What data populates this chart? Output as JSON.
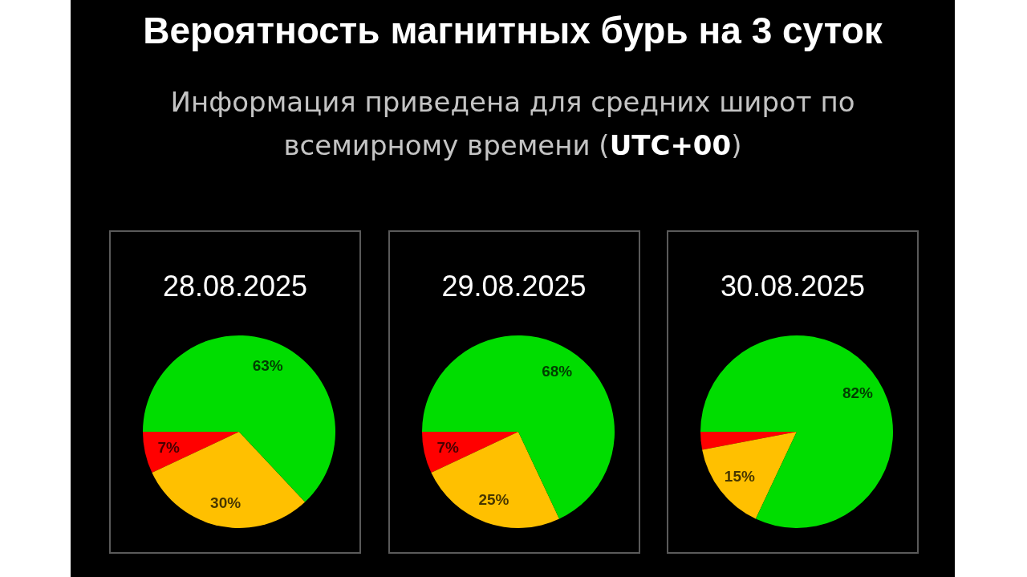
{
  "chart_data": [
    {
      "type": "other",
      "title": "Вероятность магнитных бурь на 3 суток",
      "subtitle": "Информация приведена для средних широт по всемирному времени (UTC+00)"
    },
    {
      "type": "pie",
      "title": "28.08.2025",
      "categories": [
        null,
        null,
        null
      ],
      "values": [
        7,
        30,
        63
      ],
      "colors": [
        "#ff0000",
        "#ffc000",
        "#00dd00"
      ],
      "value_labels": [
        "7%",
        "30%",
        "63%"
      ]
    },
    {
      "type": "pie",
      "title": "29.08.2025",
      "categories": [
        null,
        null,
        null
      ],
      "values": [
        7,
        25,
        68
      ],
      "colors": [
        "#ff0000",
        "#ffc000",
        "#00dd00"
      ],
      "value_labels": [
        "7%",
        "25%",
        "68%"
      ]
    },
    {
      "type": "pie",
      "title": "30.08.2025",
      "categories": [
        null,
        null,
        null
      ],
      "values": [
        3,
        15,
        82
      ],
      "colors": [
        "#ff0000",
        "#ffc000",
        "#00dd00"
      ],
      "value_labels": [
        null,
        "15%",
        "82%"
      ]
    }
  ]
}
